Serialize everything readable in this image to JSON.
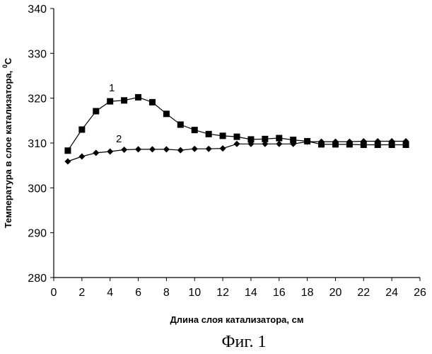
{
  "chart_data": {
    "type": "line",
    "title": "",
    "xlabel": "Длина слоя катализатора, см",
    "ylabel": "Температура в слое катализатора, °C",
    "ylabel_base": "Температура в слое катализатора, ",
    "ylabel_degree": "0",
    "ylabel_unit": "C",
    "xlim": [
      0,
      26
    ],
    "ylim": [
      280,
      340
    ],
    "xticks": [
      0,
      2,
      4,
      6,
      8,
      10,
      12,
      14,
      16,
      18,
      20,
      22,
      24,
      26
    ],
    "yticks": [
      280,
      290,
      300,
      310,
      320,
      330,
      340
    ],
    "grid": false,
    "x": [
      1,
      2,
      3,
      4,
      5,
      6,
      7,
      8,
      9,
      10,
      11,
      12,
      13,
      14,
      15,
      16,
      17,
      18,
      19,
      20,
      21,
      22,
      23,
      24,
      25
    ],
    "series": [
      {
        "name": "1",
        "marker": "square",
        "values": [
          308.3,
          313.0,
          317.1,
          319.3,
          319.5,
          320.2,
          319.1,
          316.5,
          314.1,
          312.9,
          312.0,
          311.6,
          311.4,
          310.8,
          310.9,
          311.1,
          310.7,
          310.4,
          309.7,
          309.7,
          309.7,
          309.6,
          309.6,
          309.6,
          309.6
        ]
      },
      {
        "name": "2",
        "marker": "diamond",
        "values": [
          305.9,
          307.0,
          307.8,
          308.1,
          308.5,
          308.6,
          308.6,
          308.6,
          308.4,
          308.7,
          308.7,
          308.8,
          309.8,
          309.8,
          309.8,
          309.8,
          309.8,
          310.3,
          310.3,
          310.3,
          310.3,
          310.4,
          310.4,
          310.4,
          310.4
        ]
      }
    ],
    "caption": "Фиг. 1"
  }
}
